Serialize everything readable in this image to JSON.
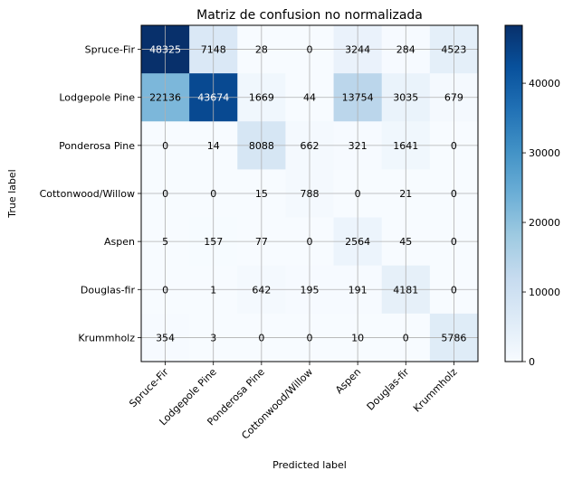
{
  "chart_data": {
    "type": "heatmap",
    "title": "Matriz de confusion no normalizada",
    "xlabel": "Predicted label",
    "ylabel": "True label",
    "x_categories": [
      "Spruce-Fir",
      "Lodgepole Pine",
      "Ponderosa Pine",
      "Cottonwood/Willow",
      "Aspen",
      "Douglas-fir",
      "Krummholz"
    ],
    "y_categories": [
      "Spruce-Fir",
      "Lodgepole Pine",
      "Ponderosa Pine",
      "Cottonwood/Willow",
      "Aspen",
      "Douglas-fir",
      "Krummholz"
    ],
    "values": [
      [
        48325,
        7148,
        28,
        0,
        3244,
        284,
        4523
      ],
      [
        22136,
        43674,
        1669,
        44,
        13754,
        3035,
        679
      ],
      [
        0,
        14,
        8088,
        662,
        321,
        1641,
        0
      ],
      [
        0,
        0,
        15,
        788,
        0,
        21,
        0
      ],
      [
        5,
        157,
        77,
        0,
        2564,
        45,
        0
      ],
      [
        0,
        1,
        642,
        195,
        191,
        4181,
        0
      ],
      [
        354,
        3,
        0,
        0,
        10,
        0,
        5786
      ]
    ],
    "colormap": "Blues",
    "grid": true,
    "colorbar": {
      "range": [
        0,
        48325
      ],
      "ticks": [
        0,
        10000,
        20000,
        30000,
        40000
      ],
      "tick_labels": [
        "0",
        "10000",
        "20000",
        "30000",
        "40000"
      ]
    }
  }
}
